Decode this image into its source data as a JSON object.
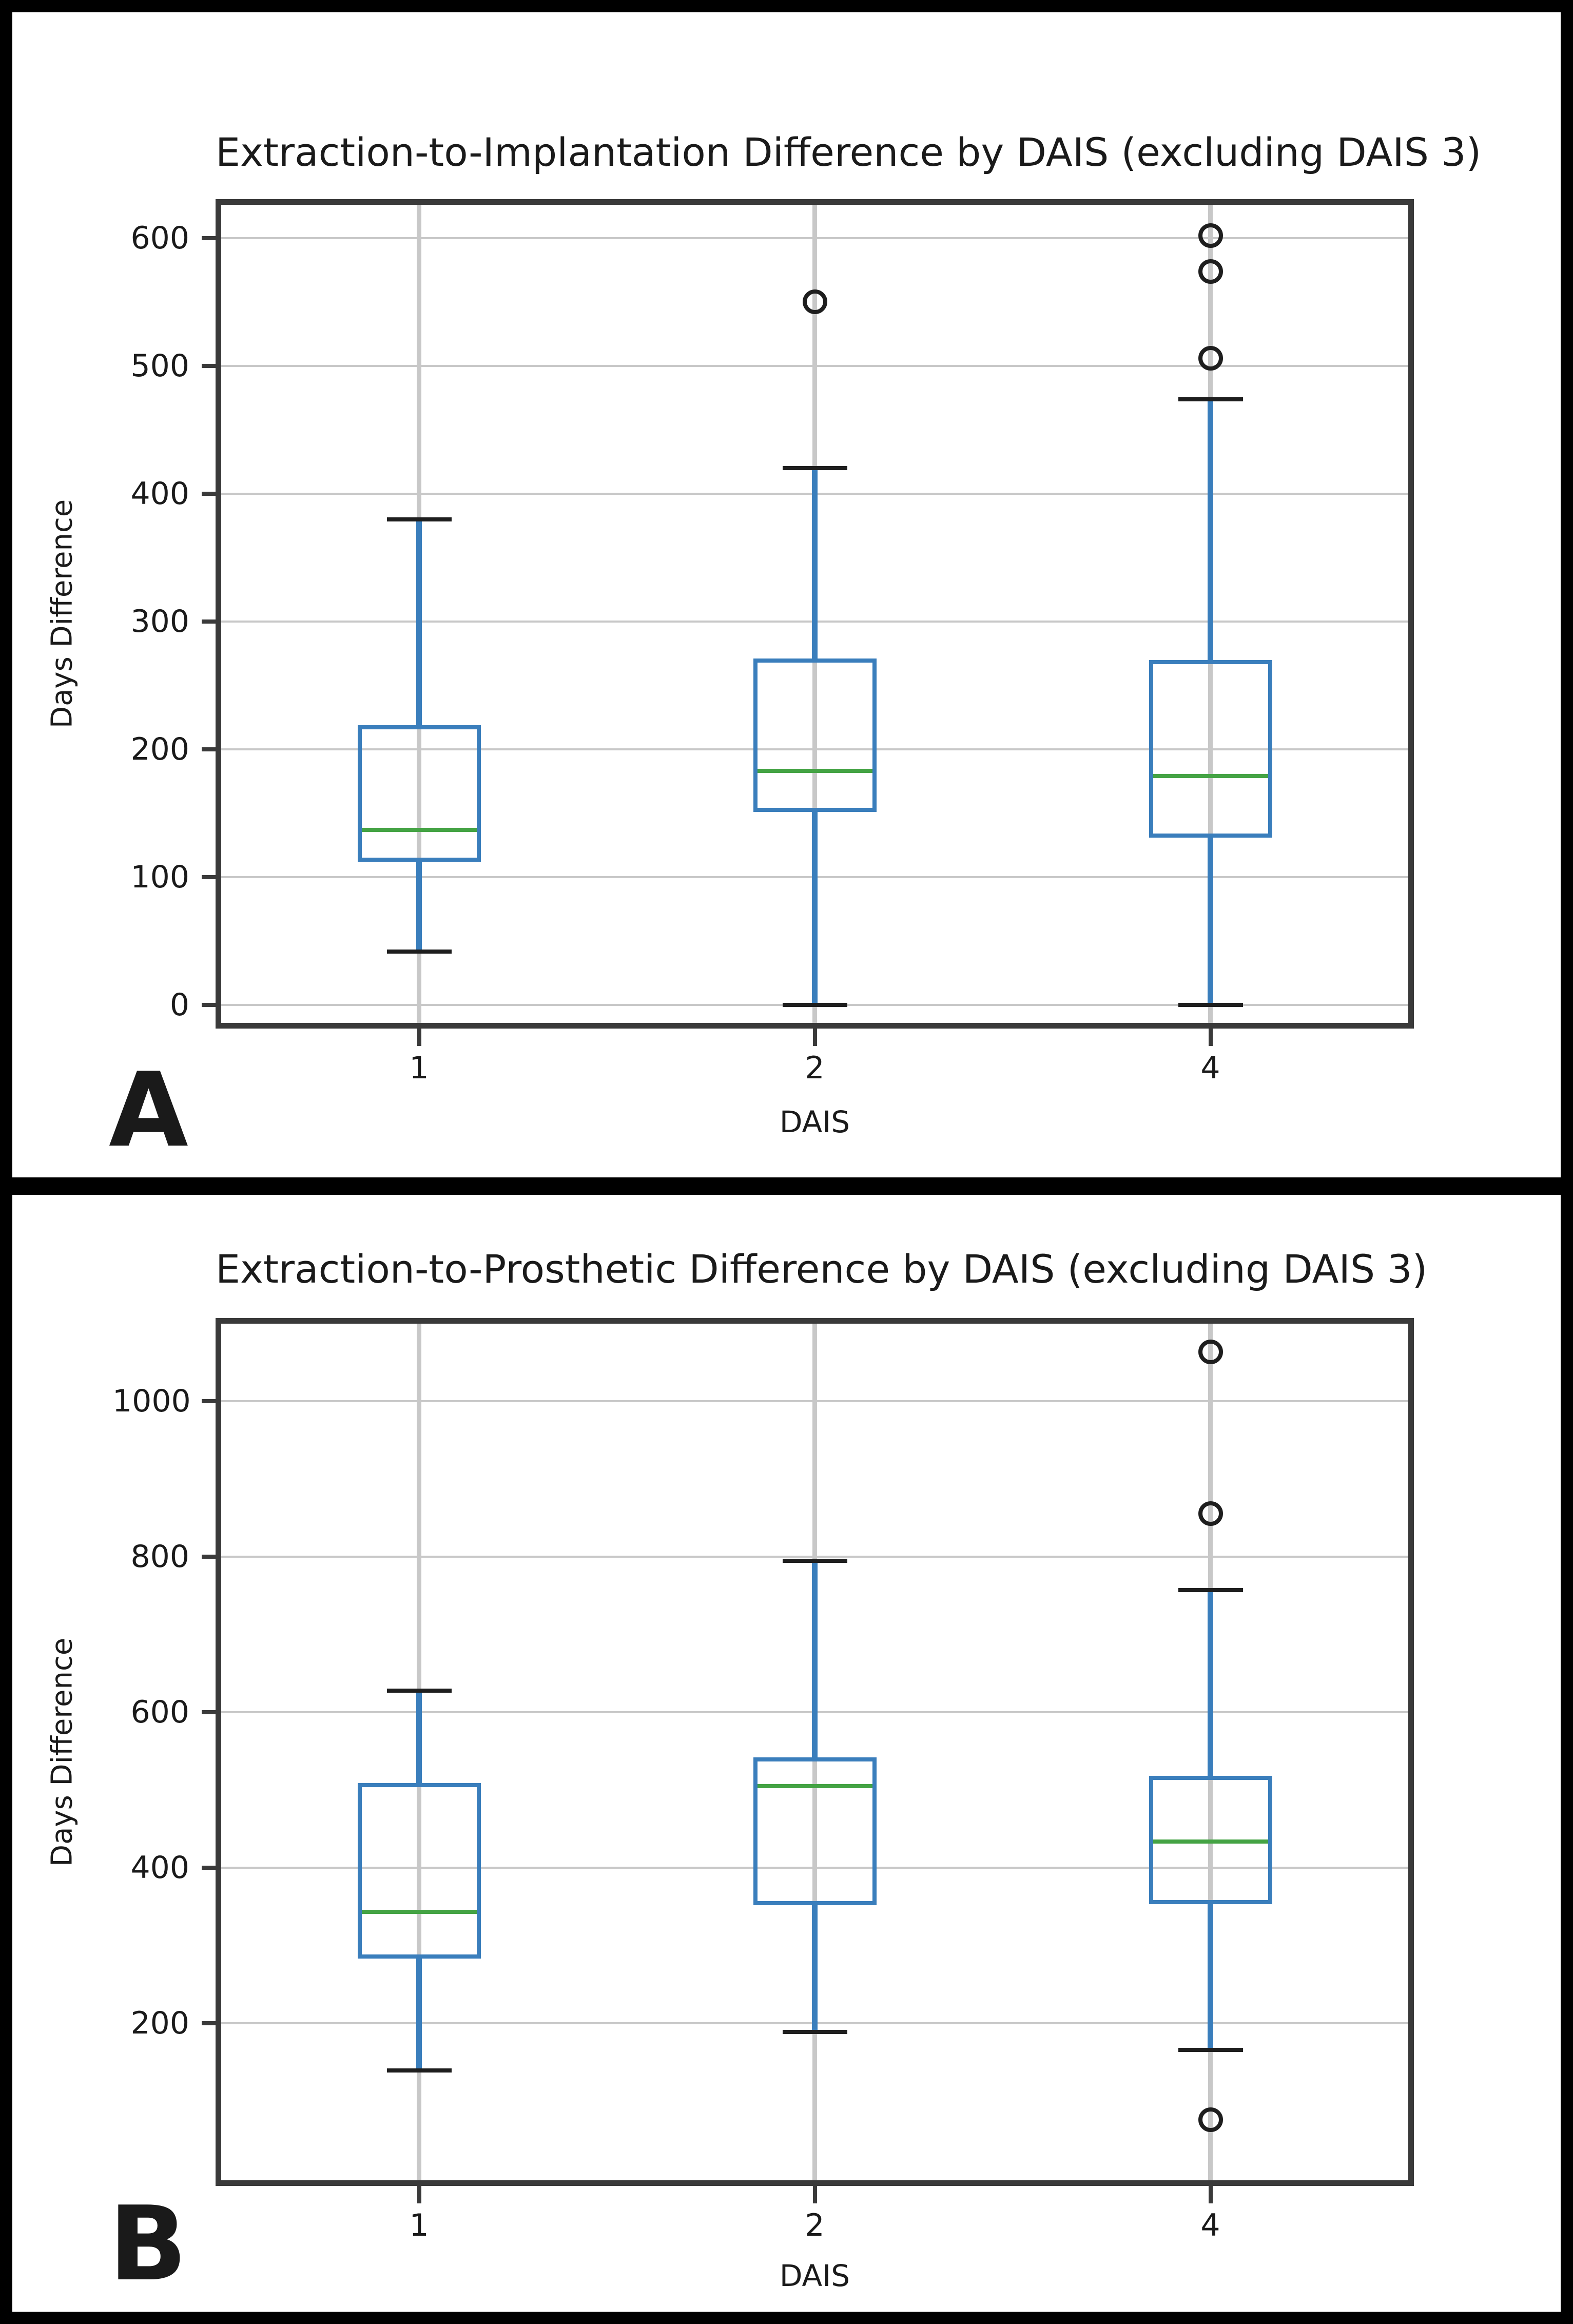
{
  "colors": {
    "box_blue": "#3a7ebc",
    "median_green": "#44a344",
    "cap_black": "#1e1e1e",
    "grid_gray": "#c8c8c8",
    "spine_gray": "#3a3a3a",
    "text": "#1a1a1a",
    "frame_border": "#000000"
  },
  "panels": [
    {
      "letter": "A"
    },
    {
      "letter": "B"
    }
  ],
  "chart_data": [
    {
      "type": "boxplot",
      "panel": "A",
      "title": "Extraction-to-Implantation Difference by DAIS (excluding DAIS 3)",
      "xlabel": "DAIS",
      "ylabel": "Days Difference",
      "categories": [
        "1",
        "2",
        "4"
      ],
      "ylim": [
        -14,
        626
      ],
      "yticks": [
        0,
        100,
        200,
        300,
        400,
        500,
        600
      ],
      "grid": true,
      "legend": "none",
      "boxes": [
        {
          "category": "1",
          "whisker_low": 42,
          "q1": 112,
          "median": 137,
          "q3": 219,
          "whisker_high": 380,
          "outliers": []
        },
        {
          "category": "2",
          "whisker_low": 0,
          "q1": 151,
          "median": 183,
          "q3": 271,
          "whisker_high": 420,
          "outliers": [
            550
          ]
        },
        {
          "category": "4",
          "whisker_low": 0,
          "q1": 131,
          "median": 179,
          "q3": 270,
          "whisker_high": 474,
          "outliers": [
            506,
            574,
            602
          ]
        }
      ]
    },
    {
      "type": "boxplot",
      "panel": "B",
      "title": "Extraction-to-Prosthetic Difference by DAIS (excluding DAIS 3)",
      "xlabel": "DAIS",
      "ylabel": "Days Difference",
      "categories": [
        "1",
        "2",
        "4"
      ],
      "ylim": [
        -2,
        1100
      ],
      "yticks": [
        200,
        400,
        600,
        800,
        1000
      ],
      "grid": true,
      "legend": "none",
      "boxes": [
        {
          "category": "1",
          "whisker_low": 139,
          "q1": 283,
          "median": 343,
          "q3": 509,
          "whisker_high": 628,
          "outliers": []
        },
        {
          "category": "2",
          "whisker_low": 189,
          "q1": 352,
          "median": 505,
          "q3": 542,
          "whisker_high": 795,
          "outliers": []
        },
        {
          "category": "4",
          "whisker_low": 166,
          "q1": 353,
          "median": 434,
          "q3": 518,
          "whisker_high": 757,
          "outliers": [
            76,
            856,
            1064
          ]
        }
      ]
    }
  ]
}
